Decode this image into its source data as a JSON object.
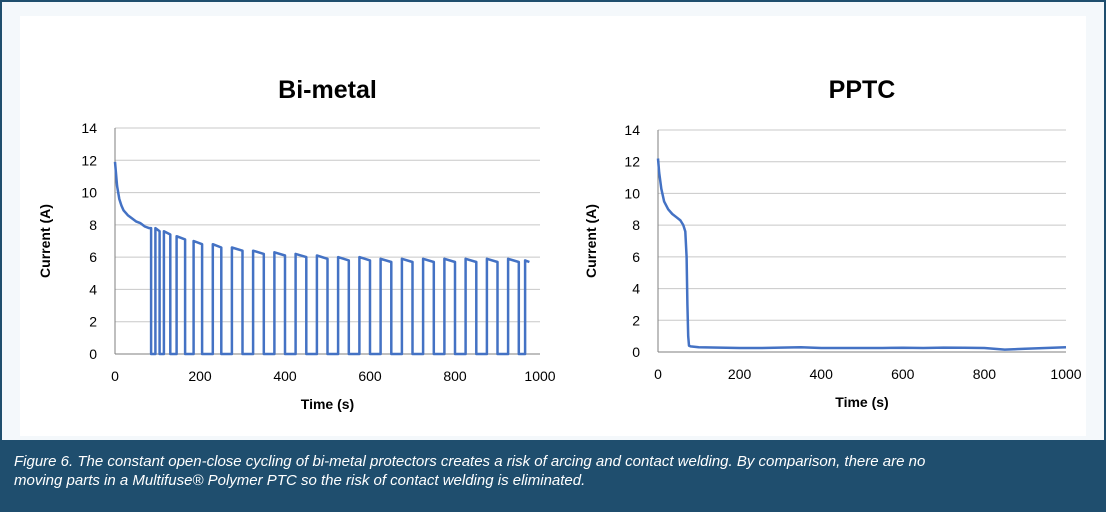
{
  "chart_data": [
    {
      "type": "line",
      "title": "Bi-metal",
      "xlabel": "Time (s)",
      "ylabel": "Current (A)",
      "xlim": [
        0,
        1000
      ],
      "ylim": [
        0,
        14
      ],
      "x_ticks": [
        "0",
        "200",
        "400",
        "600",
        "800",
        "1000"
      ],
      "y_ticks": [
        "0",
        "2",
        "4",
        "6",
        "8",
        "10",
        "12",
        "14"
      ],
      "grid": true,
      "color": "#4472c4",
      "series": [
        {
          "x": [
            0,
            5,
            10,
            15,
            20,
            30,
            40,
            50,
            60,
            70,
            80,
            85,
            85,
            95,
            95,
            105,
            105,
            115,
            115,
            130,
            130,
            145,
            145,
            165,
            165,
            185,
            185,
            205,
            205,
            230,
            230,
            250,
            250,
            275,
            275,
            300,
            300,
            325,
            325,
            350,
            350,
            375,
            375,
            400,
            400,
            425,
            425,
            450,
            450,
            475,
            475,
            500,
            500,
            525,
            525,
            550,
            550,
            575,
            575,
            600,
            600,
            625,
            625,
            650,
            650,
            675,
            675,
            700,
            700,
            725,
            725,
            750,
            750,
            775,
            775,
            800,
            800,
            825,
            825,
            850,
            850,
            875,
            875,
            900,
            900,
            925,
            925,
            950,
            950,
            965,
            965,
            975
          ],
          "y": [
            11.9,
            10.4,
            9.6,
            9.2,
            8.9,
            8.6,
            8.4,
            8.2,
            8.1,
            7.9,
            7.8,
            7.8,
            0,
            0,
            7.8,
            7.6,
            0,
            0,
            7.6,
            7.4,
            0,
            0,
            7.3,
            7.1,
            0,
            0,
            7.0,
            6.8,
            0,
            0,
            6.8,
            6.6,
            0,
            0,
            6.6,
            6.4,
            0,
            0,
            6.4,
            6.2,
            0,
            0,
            6.3,
            6.1,
            0,
            0,
            6.2,
            6.0,
            0,
            0,
            6.1,
            5.9,
            0,
            0,
            6.0,
            5.8,
            0,
            0,
            6.0,
            5.8,
            0,
            0,
            5.9,
            5.7,
            0,
            0,
            5.9,
            5.7,
            0,
            0,
            5.9,
            5.7,
            0,
            0,
            5.9,
            5.7,
            0,
            0,
            5.9,
            5.7,
            0,
            0,
            5.9,
            5.7,
            0,
            0,
            5.9,
            5.7,
            0,
            0,
            5.8,
            5.7
          ]
        }
      ]
    },
    {
      "type": "line",
      "title": "PPTC",
      "xlabel": "Time (s)",
      "ylabel": "Current (A)",
      "xlim": [
        0,
        1000
      ],
      "ylim": [
        0,
        14
      ],
      "x_ticks": [
        "0",
        "200",
        "400",
        "600",
        "800",
        "1000"
      ],
      "y_ticks": [
        "0",
        "2",
        "4",
        "6",
        "8",
        "10",
        "12",
        "14"
      ],
      "grid": true,
      "color": "#4472c4",
      "series": [
        {
          "x": [
            0,
            3,
            8,
            15,
            25,
            35,
            45,
            55,
            62,
            67,
            70,
            72,
            74,
            76,
            80,
            100,
            150,
            200,
            250,
            300,
            350,
            400,
            450,
            500,
            550,
            600,
            650,
            700,
            750,
            800,
            850,
            900,
            950,
            1000
          ],
          "y": [
            12.2,
            11.3,
            10.3,
            9.5,
            9.0,
            8.7,
            8.5,
            8.3,
            8.0,
            7.6,
            6.0,
            3.0,
            1.0,
            0.4,
            0.35,
            0.3,
            0.28,
            0.25,
            0.25,
            0.28,
            0.3,
            0.25,
            0.25,
            0.25,
            0.25,
            0.27,
            0.25,
            0.28,
            0.27,
            0.25,
            0.15,
            0.2,
            0.25,
            0.3
          ]
        }
      ]
    }
  ],
  "caption": {
    "line1": "Figure 6.  The constant open-close cycling of bi-metal protectors creates a risk of arcing and contact welding.  By comparison, there are no",
    "line2": "moving parts in a Multifuse® Polymer PTC so the risk of contact welding is eliminated."
  }
}
